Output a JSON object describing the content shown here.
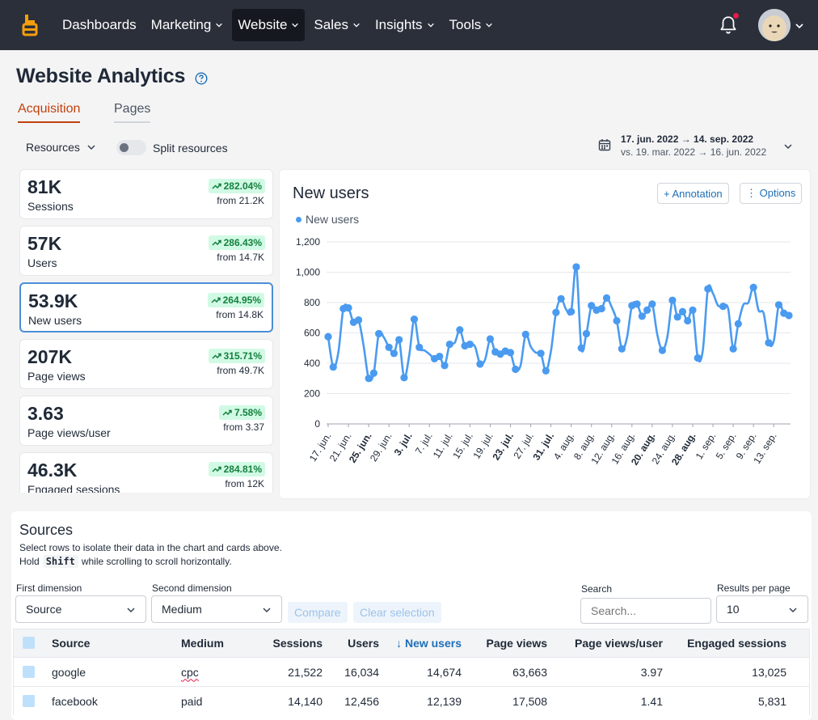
{
  "nav": {
    "items": [
      {
        "label": "Dashboards",
        "dropdown": false,
        "active": false
      },
      {
        "label": "Marketing",
        "dropdown": true,
        "active": false
      },
      {
        "label": "Website",
        "dropdown": true,
        "active": true
      },
      {
        "label": "Sales",
        "dropdown": true,
        "active": false
      },
      {
        "label": "Insights",
        "dropdown": true,
        "active": false
      },
      {
        "label": "Tools",
        "dropdown": true,
        "active": false
      }
    ],
    "has_notification": true
  },
  "page": {
    "title": "Website Analytics",
    "tabs": [
      {
        "label": "Acquisition",
        "active": true
      },
      {
        "label": "Pages",
        "active": false
      }
    ],
    "resources_label": "Resources",
    "split_resources_label": "Split resources",
    "split_resources_on": false,
    "date_range": "17. jun. 2022 → 14. sep. 2022",
    "compare_range": "vs. 19. mar. 2022 → 16. jun. 2022"
  },
  "kpis": [
    {
      "value": "81K",
      "label": "Sessions",
      "change": "282.04%",
      "from": "from 21.2K",
      "active": false
    },
    {
      "value": "57K",
      "label": "Users",
      "change": "286.43%",
      "from": "from 14.7K",
      "active": false
    },
    {
      "value": "53.9K",
      "label": "New users",
      "change": "264.95%",
      "from": "from 14.8K",
      "active": true
    },
    {
      "value": "207K",
      "label": "Page views",
      "change": "315.71%",
      "from": "from 49.7K",
      "active": false
    },
    {
      "value": "3.63",
      "label": "Page views/user",
      "change": "7.58%",
      "from": "from 3.37",
      "active": false
    },
    {
      "value": "46.3K",
      "label": "Engaged sessions",
      "change": "284.81%",
      "from": "from 12K",
      "active": false
    }
  ],
  "chart": {
    "title": "New users",
    "annotation_label": "+ Annotation",
    "options_label": "⋮ Options",
    "legend_label": "New users",
    "color": "#4a9bf0"
  },
  "chart_data": {
    "type": "line",
    "title": "New users",
    "ylim": [
      0,
      1200
    ],
    "y_ticks": [
      "0",
      "200",
      "400",
      "600",
      "800",
      "1,000",
      "1,200"
    ],
    "x_tick_labels": [
      "17. jun.",
      "21. jun.",
      "25. jun.",
      "29. jun.",
      "3. jul.",
      "7. jul.",
      "11. jul.",
      "15. jul.",
      "19. jul.",
      "23. jul.",
      "27. jul.",
      "31. jul.",
      "4. aug.",
      "8. aug.",
      "12. aug.",
      "16. aug.",
      "20. aug.",
      "24. aug.",
      "28. aug.",
      "1. sep.",
      "5. sep.",
      "9. sep.",
      "13. sep."
    ],
    "bold_ticks": [
      "25. jun.",
      "3. jul.",
      "23. jul.",
      "31. jul.",
      "20. aug.",
      "28. aug."
    ],
    "series": [
      {
        "name": "New users",
        "values": [
          575,
          375,
          470,
          760,
          765,
          670,
          685,
          515,
          300,
          335,
          595,
          570,
          505,
          465,
          555,
          305,
          450,
          690,
          505,
          485,
          460,
          430,
          445,
          385,
          525,
          535,
          620,
          515,
          525,
          510,
          395,
          425,
          560,
          475,
          460,
          480,
          470,
          360,
          385,
          590,
          510,
          470,
          465,
          350,
          480,
          735,
          825,
          755,
          740,
          1035,
          500,
          595,
          780,
          750,
          760,
          830,
          770,
          680,
          495,
          565,
          780,
          790,
          710,
          750,
          790,
          590,
          485,
          575,
          815,
          705,
          740,
          680,
          750,
          435,
          485,
          890,
          860,
          780,
          775,
          760,
          495,
          660,
          785,
          800,
          900,
          750,
          730,
          535,
          545,
          785,
          730,
          715
        ]
      }
    ]
  },
  "sources": {
    "title": "Sources",
    "desc_line1": "Select rows to isolate their data in the chart and cards above.",
    "desc_hold": "Hold",
    "desc_key": "Shift",
    "desc_rest": "while scrolling to scroll horizontally.",
    "first_dimension_label": "First dimension",
    "first_dimension_value": "Source",
    "second_dimension_label": "Second dimension",
    "second_dimension_value": "Medium",
    "compare_label": "Compare",
    "clear_selection_label": "Clear selection",
    "search_label": "Search",
    "search_placeholder": "Search...",
    "results_label": "Results per page",
    "results_value": "10",
    "columns": [
      "Source",
      "Medium",
      "Sessions",
      "Users",
      "↓ New users",
      "Page views",
      "Page views/user",
      "Engaged sessions"
    ],
    "rows": [
      {
        "source": "google",
        "medium": "cpc",
        "sessions": "21,522",
        "users": "16,034",
        "new_users": "14,674",
        "page_views": "63,663",
        "pv_user": "3.97",
        "engaged": "13,025"
      },
      {
        "source": "facebook",
        "medium": "paid",
        "sessions": "14,140",
        "users": "12,456",
        "new_users": "12,139",
        "page_views": "17,508",
        "pv_user": "1.41",
        "engaged": "5,831"
      }
    ]
  }
}
